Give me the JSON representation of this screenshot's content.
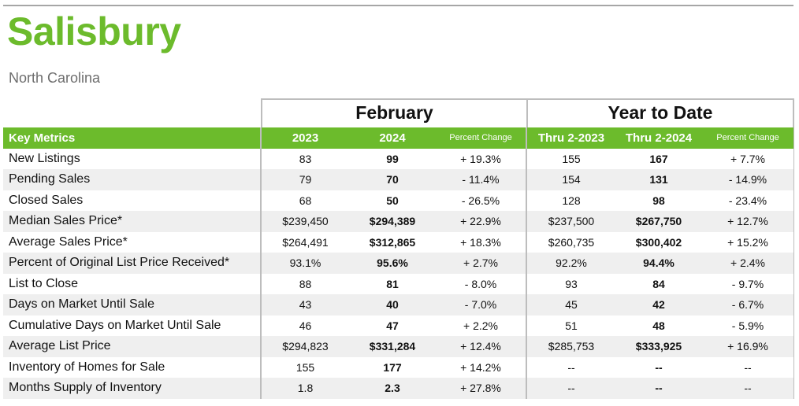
{
  "report": {
    "title": "Salisbury",
    "subtitle": "North Carolina",
    "group_february": "February",
    "group_ytd": "Year to Date"
  },
  "columns": {
    "metric": "Key Metrics",
    "feb_prev": "2023",
    "feb_curr": "2024",
    "feb_change": "Percent Change",
    "ytd_prev": "Thru 2-2023",
    "ytd_curr": "Thru 2-2024",
    "ytd_change": "Percent Change"
  },
  "rows": [
    {
      "metric": "New Listings",
      "feb_prev": "83",
      "feb_curr": "99",
      "feb_change": "+ 19.3%",
      "ytd_prev": "155",
      "ytd_curr": "167",
      "ytd_change": "+ 7.7%"
    },
    {
      "metric": "Pending Sales",
      "feb_prev": "79",
      "feb_curr": "70",
      "feb_change": "- 11.4%",
      "ytd_prev": "154",
      "ytd_curr": "131",
      "ytd_change": "- 14.9%"
    },
    {
      "metric": "Closed Sales",
      "feb_prev": "68",
      "feb_curr": "50",
      "feb_change": "- 26.5%",
      "ytd_prev": "128",
      "ytd_curr": "98",
      "ytd_change": "- 23.4%"
    },
    {
      "metric": "Median Sales Price*",
      "feb_prev": "$239,450",
      "feb_curr": "$294,389",
      "feb_change": "+ 22.9%",
      "ytd_prev": "$237,500",
      "ytd_curr": "$267,750",
      "ytd_change": "+ 12.7%"
    },
    {
      "metric": "Average Sales Price*",
      "feb_prev": "$264,491",
      "feb_curr": "$312,865",
      "feb_change": "+ 18.3%",
      "ytd_prev": "$260,735",
      "ytd_curr": "$300,402",
      "ytd_change": "+ 15.2%"
    },
    {
      "metric": "Percent of Original List Price Received*",
      "feb_prev": "93.1%",
      "feb_curr": "95.6%",
      "feb_change": "+ 2.7%",
      "ytd_prev": "92.2%",
      "ytd_curr": "94.4%",
      "ytd_change": "+ 2.4%"
    },
    {
      "metric": "List to Close",
      "feb_prev": "88",
      "feb_curr": "81",
      "feb_change": "- 8.0%",
      "ytd_prev": "93",
      "ytd_curr": "84",
      "ytd_change": "- 9.7%"
    },
    {
      "metric": "Days on Market Until Sale",
      "feb_prev": "43",
      "feb_curr": "40",
      "feb_change": "- 7.0%",
      "ytd_prev": "45",
      "ytd_curr": "42",
      "ytd_change": "- 6.7%"
    },
    {
      "metric": "Cumulative Days on Market Until Sale",
      "feb_prev": "46",
      "feb_curr": "47",
      "feb_change": "+ 2.2%",
      "ytd_prev": "51",
      "ytd_curr": "48",
      "ytd_change": "- 5.9%"
    },
    {
      "metric": "Average List Price",
      "feb_prev": "$294,823",
      "feb_curr": "$331,284",
      "feb_change": "+ 12.4%",
      "ytd_prev": "$285,753",
      "ytd_curr": "$333,925",
      "ytd_change": "+ 16.9%"
    },
    {
      "metric": "Inventory of Homes for Sale",
      "feb_prev": "155",
      "feb_curr": "177",
      "feb_change": "+ 14.2%",
      "ytd_prev": "--",
      "ytd_curr": "--",
      "ytd_change": "--"
    },
    {
      "metric": "Months Supply of Inventory",
      "feb_prev": "1.8",
      "feb_curr": "2.3",
      "feb_change": "+ 27.8%",
      "ytd_prev": "--",
      "ytd_curr": "--",
      "ytd_change": "--"
    }
  ],
  "colors": {
    "accent_green": "#6cbb2c",
    "row_stripe": "#efefef",
    "border_gray": "#bdbdbd"
  }
}
